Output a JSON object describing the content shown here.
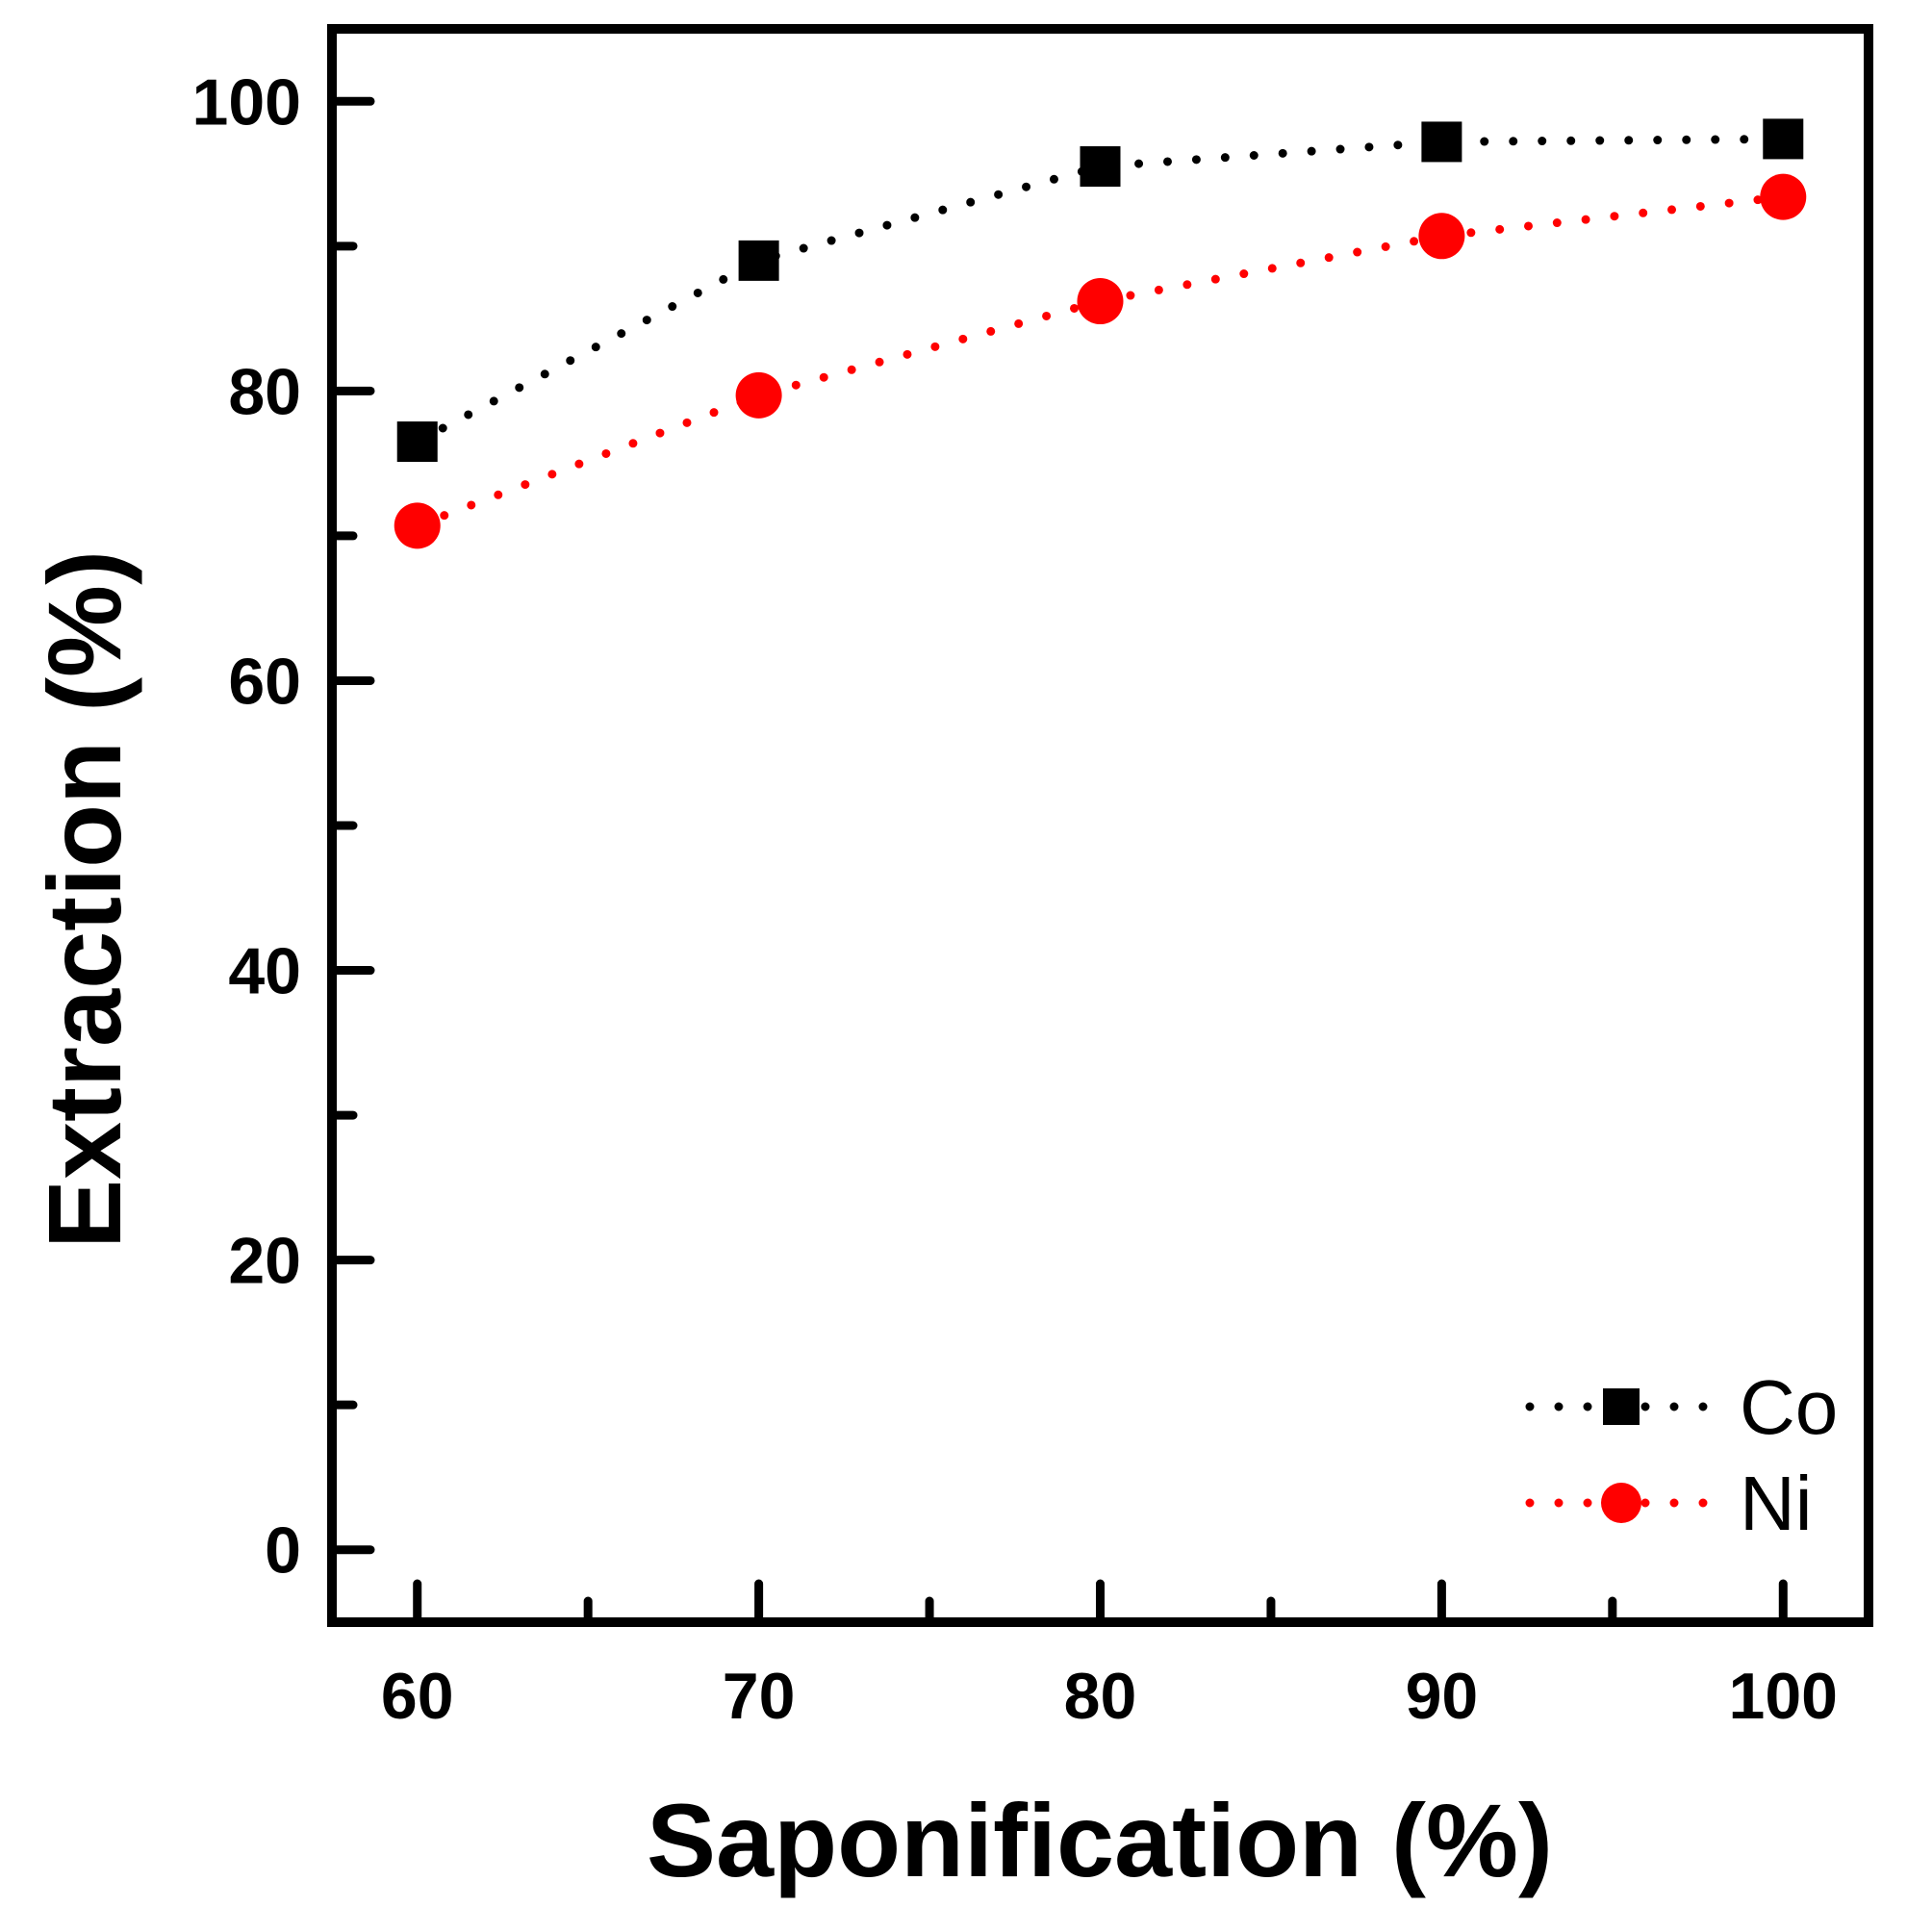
{
  "chart_data": {
    "type": "line",
    "title": "",
    "xlabel": "Saponification (%)",
    "ylabel": "Extraction (%)",
    "xlim": [
      57.5,
      102.5
    ],
    "ylim": [
      -5,
      105
    ],
    "x_ticks": [
      60,
      70,
      80,
      90,
      100
    ],
    "x_minor_ticks": [
      65,
      75,
      85,
      95
    ],
    "y_ticks": [
      0,
      20,
      40,
      60,
      80,
      100
    ],
    "y_minor_ticks": [
      10,
      30,
      50,
      70,
      90
    ],
    "x": [
      60,
      70,
      80,
      90,
      100
    ],
    "series": [
      {
        "name": "Co",
        "values": [
          76.5,
          89.0,
          95.5,
          97.2,
          97.4
        ],
        "color": "#000000",
        "marker": "square",
        "line": "dotted"
      },
      {
        "name": "Ni",
        "values": [
          70.7,
          79.7,
          86.2,
          90.7,
          93.4
        ],
        "color": "#ff0000",
        "marker": "circle",
        "line": "dotted"
      }
    ],
    "legend": {
      "position": "bottom-right"
    },
    "grid": false
  }
}
